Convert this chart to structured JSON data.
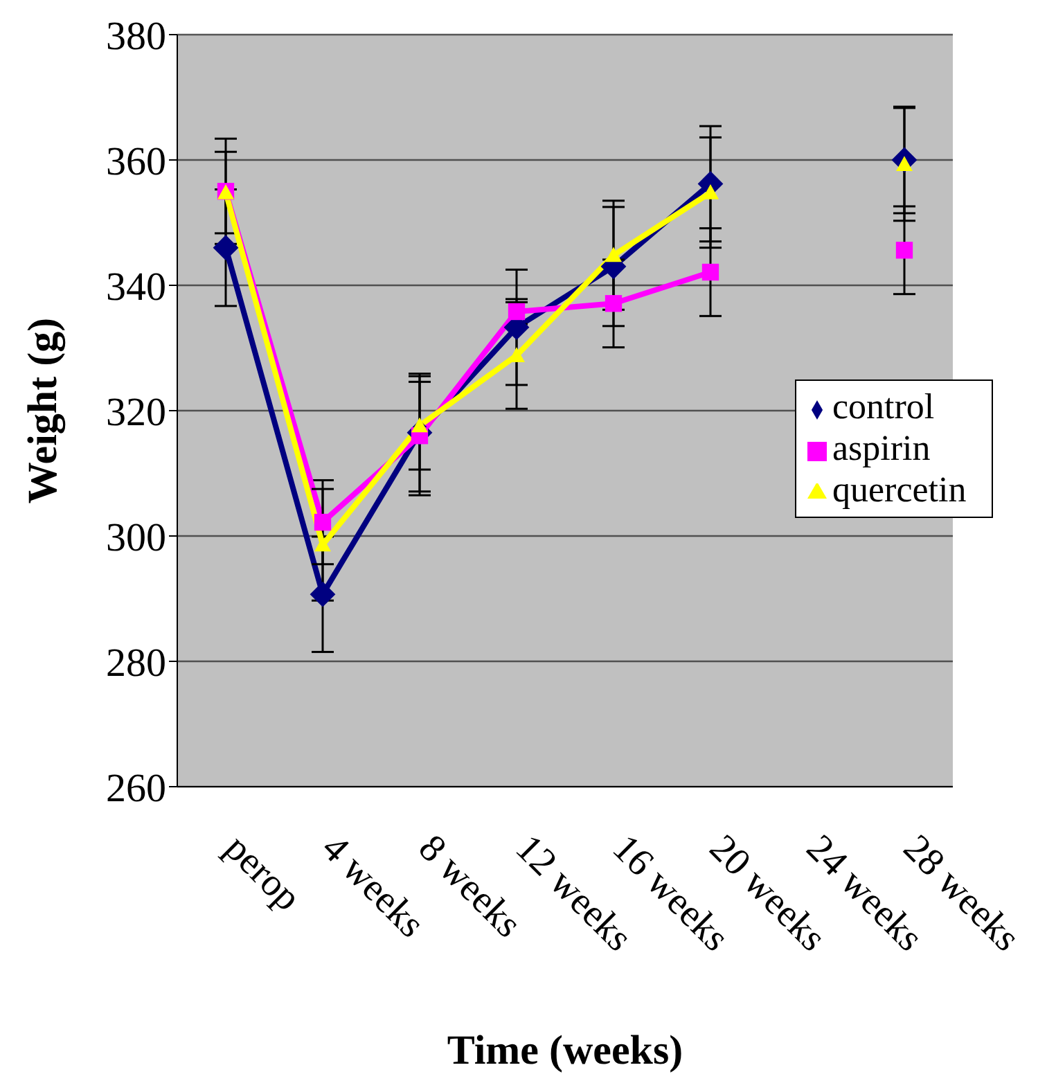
{
  "chart_data": {
    "type": "line",
    "xlabel": "Time (weeks)",
    "ylabel": "Weight (g)",
    "categories": [
      "perop",
      "4 weeks",
      "8 weeks",
      "12 weeks",
      "16 weeks",
      "20 weeks",
      "24 weeks",
      "28 weeks"
    ],
    "series": [
      {
        "name": "control",
        "color": "#000080",
        "marker": "diamond",
        "values": [
          346,
          290.7,
          316.5,
          333.3,
          343,
          356.2,
          null,
          360
        ],
        "errors": [
          9.3,
          9.2,
          9.4,
          9.2,
          9.5,
          9.2,
          null,
          8.5
        ]
      },
      {
        "name": "aspirin",
        "color": "#ff00ff",
        "marker": "square",
        "values": [
          355,
          302.2,
          316,
          335.8,
          337.1,
          342.1,
          null,
          345.6
        ],
        "errors": [
          8.4,
          6.7,
          9.5,
          2,
          7,
          7,
          null,
          7
        ]
      },
      {
        "name": "quercetin",
        "color": "#ffff00",
        "marker": "triangle",
        "values": [
          354.8,
          298.6,
          317.6,
          328.8,
          344.8,
          354.8,
          null,
          359.3
        ],
        "errors": [
          6.5,
          8.9,
          7,
          8.5,
          8.7,
          8.8,
          null,
          9
        ]
      }
    ],
    "ylim": [
      260,
      380
    ],
    "yticks": [
      260,
      280,
      300,
      320,
      340,
      360,
      380
    ],
    "grid": "y",
    "legend": "right"
  }
}
